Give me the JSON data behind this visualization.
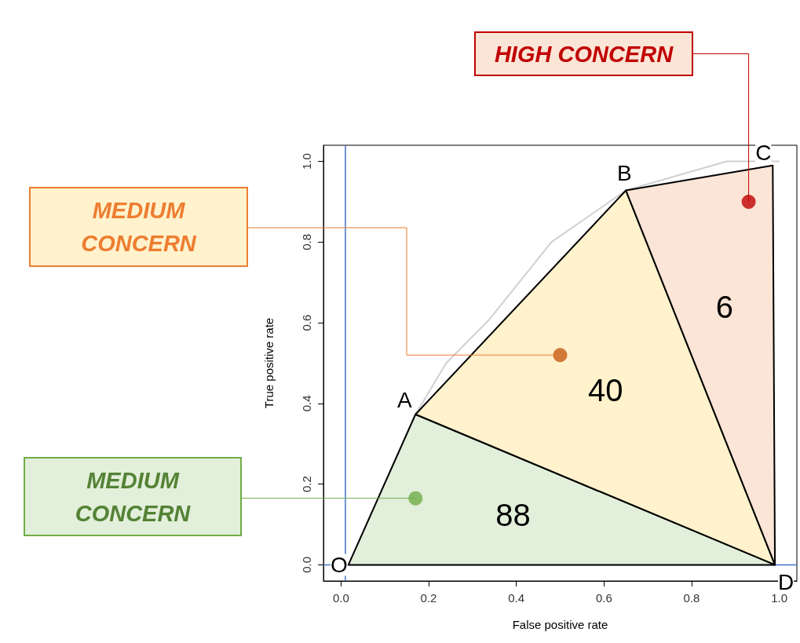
{
  "chart_data": {
    "type": "area",
    "xlabel": "False positive rate",
    "ylabel": "True positive rate",
    "xlim": [
      -0.04,
      1.04
    ],
    "ylim": [
      -0.04,
      1.04
    ],
    "xticks": [
      {
        "value": 0,
        "label": "0.0"
      },
      0.2,
      0.4,
      0.6,
      0.8,
      {
        "value": 1,
        "label": "1.0"
      }
    ],
    "yticks": [
      {
        "value": 0,
        "label": "0.0"
      },
      0.2,
      0.4,
      0.6,
      0.8,
      {
        "value": 1,
        "label": "1.0"
      }
    ],
    "series": [
      {
        "type": "line",
        "color": "#d0d0d0",
        "x": [
          0.017,
          0.17,
          0.24,
          0.34,
          0.48,
          0.65,
          0.88,
          1.0
        ],
        "values": [
          0,
          0.373,
          0.5,
          0.61,
          0.8,
          0.928,
          1.0,
          1.0
        ]
      },
      {
        "color": "#e2efda",
        "x": [
          0.017,
          0.17,
          0.99,
          0.017
        ],
        "values": [
          0,
          0.373,
          0,
          0
        ]
      },
      {
        "color": "#fff2cc",
        "x": [
          0.17,
          0.65,
          0.99,
          0.17
        ],
        "values": [
          0.373,
          0.928,
          0,
          0.373
        ]
      },
      {
        "color": "#fbe5d6",
        "x": [
          0.65,
          0.985,
          0.99,
          0.65
        ],
        "values": [
          0.928,
          0.99,
          0,
          0.928
        ]
      },
      {
        "type": "scatter",
        "colors": [
          "#70ad47",
          "#c55a11",
          "#c00000"
        ],
        "x": [
          0.17,
          0.5,
          0.93
        ],
        "values": [
          0.165,
          0.52,
          0.9
        ]
      }
    ],
    "ref_lines": [
      {
        "axis": "x",
        "value": 0.01,
        "color": "#4472c4"
      },
      {
        "axis": "y",
        "value": 0,
        "color": "#4472c4"
      }
    ],
    "annotations": [
      "MEDIUM CONCERN",
      "MEDIUM CONCERN",
      {
        "text": "HIGH CONCERN",
        "x": 0.93,
        "y": 0.9
      },
      {
        "text": "O",
        "x": 0.017,
        "y": 0.0
      },
      {
        "text": "A",
        "x": 0.17,
        "y": 0.373
      },
      {
        "text": "B",
        "x": 0.65,
        "y": 0.928
      },
      {
        "text": "C",
        "x": 0.985,
        "y": 0.99
      },
      {
        "text": "D",
        "x": 0.99,
        "y": 0.0
      },
      "88",
      "40",
      "6"
    ]
  }
}
